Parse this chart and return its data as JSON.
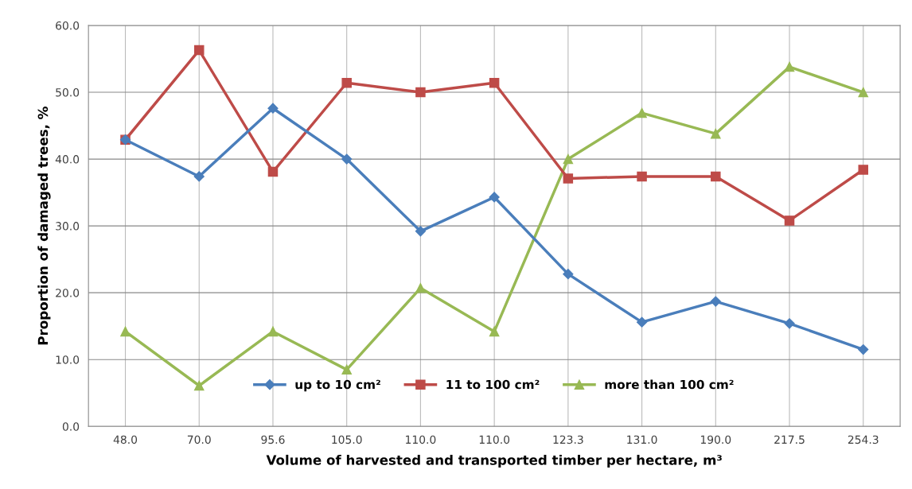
{
  "chart_data": {
    "type": "line",
    "xlabel": "Volume of harvested and transported timber per hectare, m³",
    "ylabel": "Proportion of damaged trees, %",
    "categories": [
      "48.0",
      "70.0",
      "95.6",
      "105.0",
      "110.0",
      "110.0",
      "123.3",
      "131.0",
      "190.0",
      "217.5",
      "254.3"
    ],
    "series": [
      {
        "name": "up to 10 cm²",
        "color": "#4a7ebb",
        "marker": "diamond",
        "values": [
          42.9,
          37.4,
          47.6,
          40.0,
          29.2,
          34.3,
          22.8,
          15.6,
          18.7,
          15.4,
          11.5
        ]
      },
      {
        "name": "11 to 100 cm²",
        "color": "#be4b48",
        "marker": "square",
        "values": [
          42.9,
          56.3,
          38.1,
          51.4,
          50.0,
          51.4,
          37.1,
          37.4,
          37.4,
          30.8,
          38.4
        ]
      },
      {
        "name": "more than 100 cm²",
        "color": "#98b954",
        "marker": "triangle",
        "values": [
          14.2,
          6.1,
          14.2,
          8.5,
          20.7,
          14.2,
          40.0,
          46.9,
          43.8,
          53.8,
          50.0
        ]
      }
    ],
    "ylim": [
      0,
      60
    ],
    "yticks": [
      {
        "value": 0,
        "label": "0.0"
      },
      {
        "value": 10,
        "label": "10.0"
      },
      {
        "value": 20,
        "label": "20.0"
      },
      {
        "value": 30,
        "label": "30.0"
      },
      {
        "value": 40,
        "label": "40.0"
      },
      {
        "value": 50,
        "label": "50.0"
      },
      {
        "value": 60,
        "label": "60.0"
      }
    ],
    "grid": true,
    "legend": "bottom"
  }
}
